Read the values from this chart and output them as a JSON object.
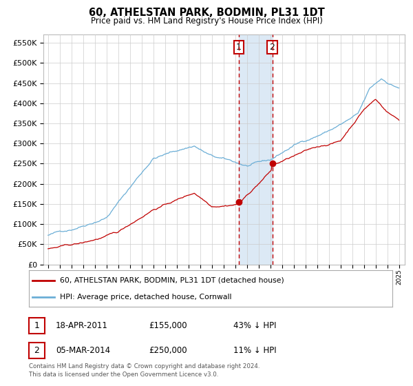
{
  "title": "60, ATHELSTAN PARK, BODMIN, PL31 1DT",
  "subtitle": "Price paid vs. HM Land Registry's House Price Index (HPI)",
  "legend_line1": "60, ATHELSTAN PARK, BODMIN, PL31 1DT (detached house)",
  "legend_line2": "HPI: Average price, detached house, Cornwall",
  "transaction1_date": "18-APR-2011",
  "transaction1_price": 155000,
  "transaction1_label": "43% ↓ HPI",
  "transaction1_year": 2011.29,
  "transaction2_date": "05-MAR-2014",
  "transaction2_price": 250000,
  "transaction2_label": "11% ↓ HPI",
  "transaction2_year": 2014.17,
  "hpi_color": "#6baed6",
  "price_color": "#c00000",
  "background_color": "#ffffff",
  "plot_bg_color": "#ffffff",
  "grid_color": "#cccccc",
  "highlight_color": "#dce9f5",
  "footnote1": "Contains HM Land Registry data © Crown copyright and database right 2024.",
  "footnote2": "This data is licensed under the Open Government Licence v3.0.",
  "ylim": [
    0,
    570000
  ],
  "yticks": [
    0,
    50000,
    100000,
    150000,
    200000,
    250000,
    300000,
    350000,
    400000,
    450000,
    500000,
    550000
  ],
  "xlim_start": 1994.6,
  "xlim_end": 2025.5
}
